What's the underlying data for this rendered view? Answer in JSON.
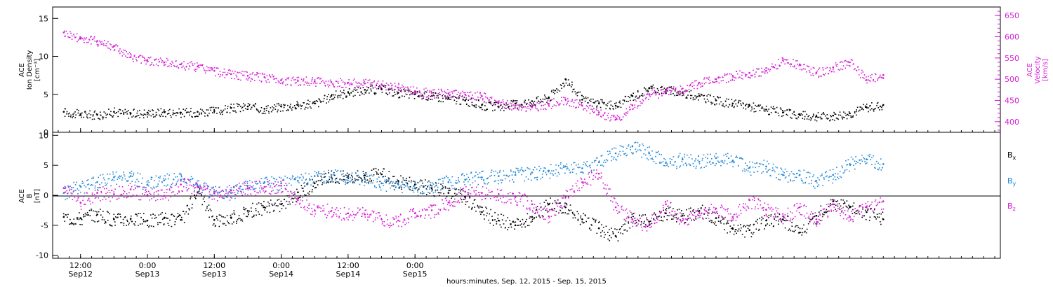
{
  "chart_data": [
    {
      "type": "scatter",
      "panel": "top",
      "ylabel_lines": [
        "ACE",
        "Ion Density",
        "[cm⁻³]"
      ],
      "ylim": [
        0,
        16.5
      ],
      "yticks": [
        0,
        5,
        10,
        15
      ],
      "y2label_lines": [
        "ACE",
        "Velocity",
        "[km/s]"
      ],
      "y2lim": [
        375,
        670
      ],
      "y2ticks": [
        400,
        450,
        500,
        550,
        600,
        650
      ],
      "series": [
        {
          "color": "#000000",
          "points": [
            [
              -3,
              2.7
            ],
            [
              0,
              2.4
            ],
            [
              3,
              2.3
            ],
            [
              6,
              2.7
            ],
            [
              9,
              2.5
            ],
            [
              12,
              2.6
            ],
            [
              15,
              2.7
            ],
            [
              18,
              2.6
            ],
            [
              21,
              2.7
            ],
            [
              24,
              2.8
            ],
            [
              27,
              3.2
            ],
            [
              30,
              3.4
            ],
            [
              33,
              3.1
            ],
            [
              36,
              3.4
            ],
            [
              39,
              3.6
            ],
            [
              42,
              3.8
            ],
            [
              45,
              4.8
            ],
            [
              48,
              5.3
            ],
            [
              51,
              5.6
            ],
            [
              54,
              5.7
            ],
            [
              57,
              5.2
            ],
            [
              60,
              5.0
            ],
            [
              63,
              4.8
            ],
            [
              66,
              4.5
            ],
            [
              69,
              4.2
            ],
            [
              72,
              3.6
            ],
            [
              75,
              3.4
            ],
            [
              78,
              3.8
            ],
            [
              81,
              4.1
            ],
            [
              84,
              4.6
            ],
            [
              87,
              7.0
            ],
            [
              90,
              4.3
            ],
            [
              93,
              3.8
            ],
            [
              96,
              3.5
            ],
            [
              99,
              4.8
            ],
            [
              102,
              5.8
            ],
            [
              105,
              5.6
            ],
            [
              108,
              5.2
            ],
            [
              111,
              4.8
            ],
            [
              114,
              4.2
            ],
            [
              117,
              3.8
            ],
            [
              120,
              3.5
            ],
            [
              123,
              3.0
            ],
            [
              126,
              2.6
            ],
            [
              129,
              2.3
            ],
            [
              132,
              2.1
            ],
            [
              135,
              2.2
            ],
            [
              138,
              2.5
            ],
            [
              141,
              3.3
            ],
            [
              144,
              3.6
            ]
          ]
        },
        {
          "color": "#d61bd6",
          "points": [
            [
              -3,
              610
            ],
            [
              0,
              598
            ],
            [
              3,
              590
            ],
            [
              6,
              578
            ],
            [
              9,
              552
            ],
            [
              12,
              545
            ],
            [
              15,
              540
            ],
            [
              18,
              535
            ],
            [
              21,
              530
            ],
            [
              24,
              520
            ],
            [
              27,
              512
            ],
            [
              30,
              508
            ],
            [
              33,
              505
            ],
            [
              36,
              498
            ],
            [
              39,
              496
            ],
            [
              42,
              495
            ],
            [
              45,
              493
            ],
            [
              48,
              492
            ],
            [
              51,
              490
            ],
            [
              54,
              488
            ],
            [
              57,
              480
            ],
            [
              60,
              472
            ],
            [
              63,
              468
            ],
            [
              66,
              466
            ],
            [
              69,
              464
            ],
            [
              72,
              460
            ],
            [
              75,
              445
            ],
            [
              78,
              438
            ],
            [
              81,
              435
            ],
            [
              84,
              442
            ],
            [
              87,
              452
            ],
            [
              90,
              438
            ],
            [
              93,
              422
            ],
            [
              96,
              405
            ],
            [
              99,
              438
            ],
            [
              102,
              465
            ],
            [
              105,
              470
            ],
            [
              108,
              478
            ],
            [
              111,
              492
            ],
            [
              114,
              500
            ],
            [
              117,
              508
            ],
            [
              120,
              515
            ],
            [
              123,
              520
            ],
            [
              126,
              545
            ],
            [
              129,
              535
            ],
            [
              132,
              515
            ],
            [
              135,
              528
            ],
            [
              138,
              540
            ],
            [
              141,
              498
            ],
            [
              144,
              510
            ]
          ]
        }
      ]
    },
    {
      "type": "scatter",
      "panel": "bottom",
      "ylabel_lines": [
        "ACE",
        "B",
        "[nT]"
      ],
      "ylim": [
        -10.5,
        10.5
      ],
      "yticks": [
        -10,
        -5,
        0,
        5,
        10
      ],
      "legend_position": "right",
      "series": [
        {
          "name": "Bx",
          "color": "#000000",
          "points": [
            [
              -3,
              -3.6
            ],
            [
              0,
              -3.8
            ],
            [
              3,
              -3.2
            ],
            [
              6,
              -4.0
            ],
            [
              9,
              -3.9
            ],
            [
              12,
              -4.2
            ],
            [
              15,
              -3.8
            ],
            [
              18,
              -4.1
            ],
            [
              21,
              0.5
            ],
            [
              24,
              -4.1
            ],
            [
              27,
              -3.7
            ],
            [
              30,
              -2.6
            ],
            [
              33,
              -2.0
            ],
            [
              36,
              -1.5
            ],
            [
              39,
              0.5
            ],
            [
              42,
              2.0
            ],
            [
              45,
              3.0
            ],
            [
              48,
              3.2
            ],
            [
              51,
              3.3
            ],
            [
              54,
              3.5
            ],
            [
              57,
              2.4
            ],
            [
              60,
              1.8
            ],
            [
              63,
              1.2
            ],
            [
              66,
              0.4
            ],
            [
              69,
              -0.3
            ],
            [
              72,
              -2.8
            ],
            [
              75,
              -4.2
            ],
            [
              78,
              -5.0
            ],
            [
              81,
              -3.6
            ],
            [
              84,
              -1.5
            ],
            [
              87,
              -2.0
            ],
            [
              90,
              -4.0
            ],
            [
              93,
              -5.5
            ],
            [
              96,
              -6.8
            ],
            [
              99,
              -4.0
            ],
            [
              102,
              -4.4
            ],
            [
              105,
              -3.0
            ],
            [
              108,
              -3.4
            ],
            [
              111,
              -2.6
            ],
            [
              114,
              -3.8
            ],
            [
              117,
              -5.6
            ],
            [
              120,
              -5.8
            ],
            [
              123,
              -4.2
            ],
            [
              126,
              -4.0
            ],
            [
              129,
              -6.2
            ],
            [
              132,
              -3.4
            ],
            [
              135,
              -1.0
            ],
            [
              138,
              -2.0
            ],
            [
              141,
              -2.8
            ],
            [
              144,
              -4.0
            ]
          ]
        },
        {
          "name": "By",
          "color": "#1f86d6",
          "points": [
            [
              -3,
              0.4
            ],
            [
              0,
              1.5
            ],
            [
              3,
              2.2
            ],
            [
              6,
              3.0
            ],
            [
              9,
              3.2
            ],
            [
              12,
              1.8
            ],
            [
              15,
              2.5
            ],
            [
              18,
              2.6
            ],
            [
              21,
              1.6
            ],
            [
              24,
              0.6
            ],
            [
              27,
              0.4
            ],
            [
              30,
              1.6
            ],
            [
              33,
              2.2
            ],
            [
              36,
              2.0
            ],
            [
              39,
              2.4
            ],
            [
              42,
              3.2
            ],
            [
              45,
              3.4
            ],
            [
              48,
              3.0
            ],
            [
              51,
              2.7
            ],
            [
              54,
              2.0
            ],
            [
              57,
              1.8
            ],
            [
              60,
              1.2
            ],
            [
              63,
              1.6
            ],
            [
              66,
              2.2
            ],
            [
              69,
              2.6
            ],
            [
              72,
              3.0
            ],
            [
              75,
              3.2
            ],
            [
              78,
              3.4
            ],
            [
              81,
              3.8
            ],
            [
              84,
              4.1
            ],
            [
              87,
              4.8
            ],
            [
              90,
              4.5
            ],
            [
              93,
              5.5
            ],
            [
              96,
              7.0
            ],
            [
              99,
              8.2
            ],
            [
              102,
              7.0
            ],
            [
              105,
              5.4
            ],
            [
              108,
              6.0
            ],
            [
              111,
              5.6
            ],
            [
              114,
              6.2
            ],
            [
              117,
              5.8
            ],
            [
              120,
              4.6
            ],
            [
              123,
              4.8
            ],
            [
              126,
              3.4
            ],
            [
              129,
              3.4
            ],
            [
              132,
              2.4
            ],
            [
              135,
              3.4
            ],
            [
              138,
              5.2
            ],
            [
              141,
              6.0
            ],
            [
              144,
              5.2
            ]
          ]
        },
        {
          "name": "Bz",
          "color": "#d61bd6",
          "points": [
            [
              -3,
              1.2
            ],
            [
              0,
              -1.2
            ],
            [
              3,
              0.4
            ],
            [
              6,
              0.2
            ],
            [
              9,
              1.0
            ],
            [
              12,
              0.1
            ],
            [
              15,
              -0.1
            ],
            [
              18,
              1.8
            ],
            [
              21,
              1.4
            ],
            [
              24,
              0.3
            ],
            [
              27,
              0.8
            ],
            [
              30,
              1.2
            ],
            [
              33,
              1.4
            ],
            [
              36,
              1.6
            ],
            [
              39,
              -0.8
            ],
            [
              42,
              -2.5
            ],
            [
              45,
              -2.6
            ],
            [
              48,
              -3.0
            ],
            [
              51,
              -3.2
            ],
            [
              54,
              -4.0
            ],
            [
              57,
              -4.2
            ],
            [
              60,
              -3.0
            ],
            [
              63,
              -2.5
            ],
            [
              66,
              -1.2
            ],
            [
              69,
              0.6
            ],
            [
              72,
              0.4
            ],
            [
              75,
              0.2
            ],
            [
              78,
              -0.3
            ],
            [
              81,
              -1.5
            ],
            [
              84,
              -3.5
            ],
            [
              87,
              -0.4
            ],
            [
              90,
              2.2
            ],
            [
              93,
              3.6
            ],
            [
              96,
              -2.0
            ],
            [
              99,
              -4.0
            ],
            [
              102,
              -5.0
            ],
            [
              105,
              -1.5
            ],
            [
              108,
              -4.2
            ],
            [
              111,
              -3.0
            ],
            [
              114,
              -2.2
            ],
            [
              117,
              -3.6
            ],
            [
              120,
              -0.8
            ],
            [
              123,
              -2.4
            ],
            [
              126,
              -3.5
            ],
            [
              129,
              -2.0
            ],
            [
              132,
              -4.0
            ],
            [
              135,
              -1.5
            ],
            [
              138,
              -3.6
            ],
            [
              141,
              -2.0
            ],
            [
              144,
              -1.0
            ]
          ]
        }
      ]
    }
  ],
  "xaxis": {
    "hours_per_data_unit": 1,
    "xlim": [
      -5,
      165
    ],
    "ticks": [
      {
        "x": 0,
        "time": "12:00",
        "date": "Sep12"
      },
      {
        "x": 12,
        "time": "0:00",
        "date": "Sep13"
      },
      {
        "x": 24,
        "time": "12:00",
        "date": "Sep13"
      },
      {
        "x": 36,
        "time": "0:00",
        "date": "Sep14"
      },
      {
        "x": 48,
        "time": "12:00",
        "date": "Sep14"
      },
      {
        "x": 60,
        "time": "0:00",
        "date": "Sep15"
      }
    ],
    "xlabel": "hours:minutes, Sep. 12, 2015 - Sep. 15, 2015"
  },
  "legend": [
    {
      "main": "B",
      "sub": "x",
      "color": "#000000"
    },
    {
      "main": "B",
      "sub": "y",
      "color": "#1f86d6"
    },
    {
      "main": "B",
      "sub": "z",
      "color": "#d61bd6"
    }
  ]
}
